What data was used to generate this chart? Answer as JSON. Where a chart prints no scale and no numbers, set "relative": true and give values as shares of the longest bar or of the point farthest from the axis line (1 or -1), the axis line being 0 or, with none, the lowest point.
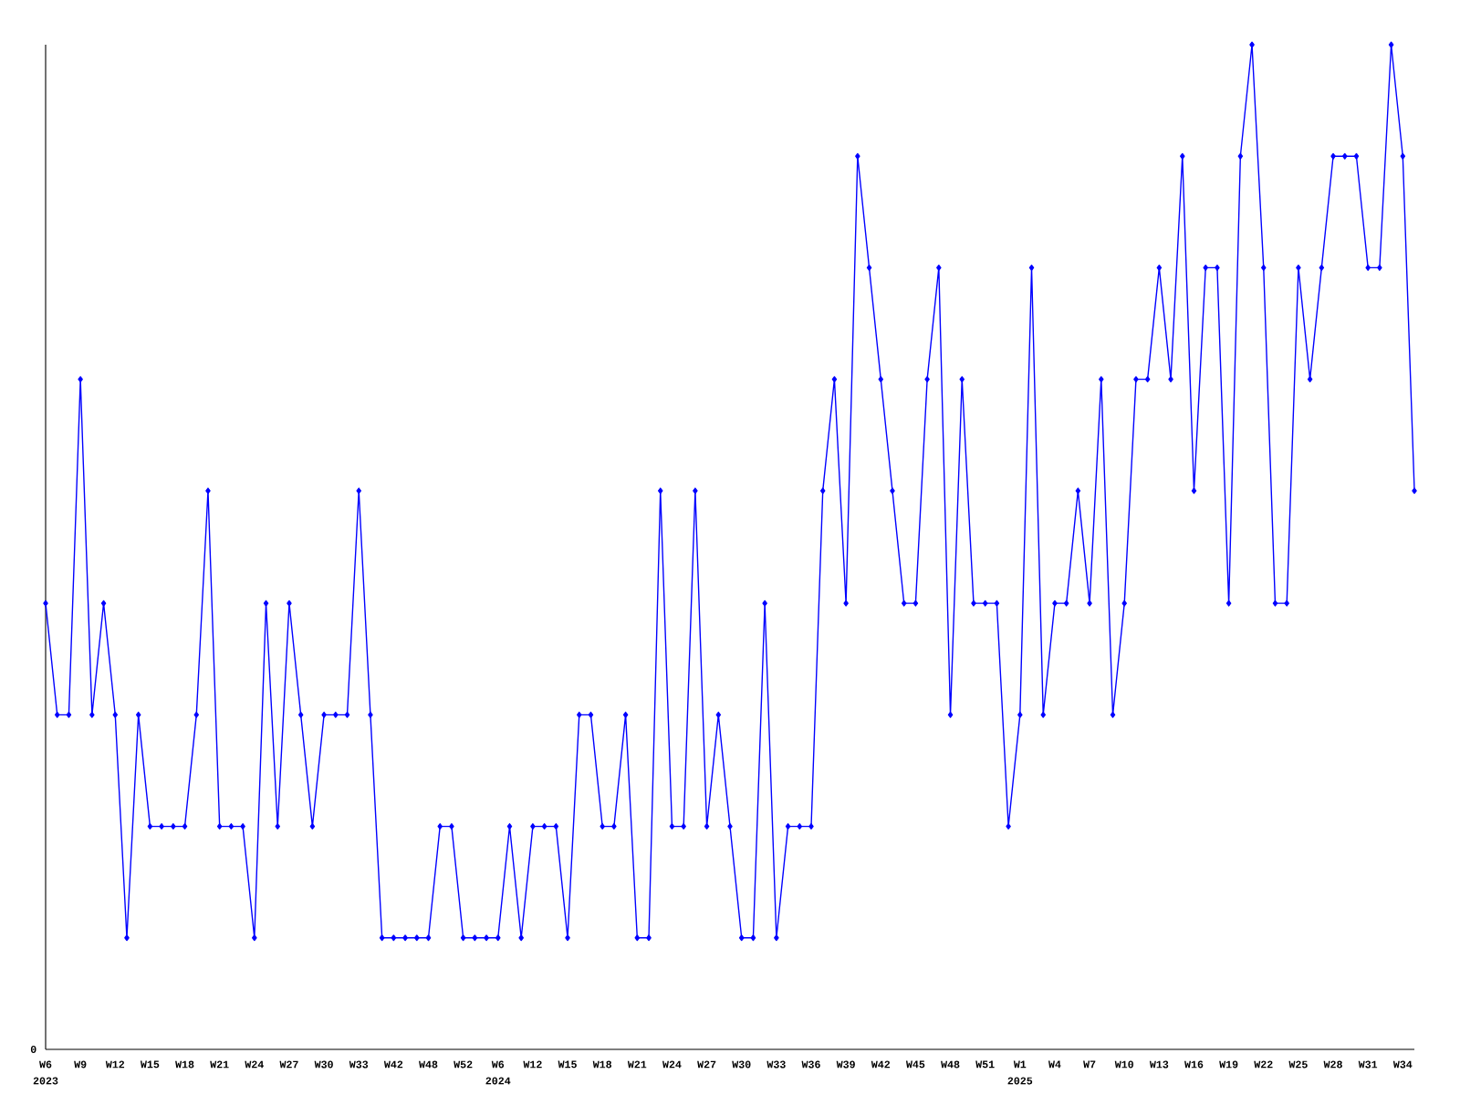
{
  "chart_data": {
    "type": "line",
    "relative": true,
    "color": "#0000ff",
    "marker": "diamond",
    "categories": [
      "W6",
      null,
      null,
      "W9",
      null,
      null,
      "W12",
      null,
      null,
      "W15",
      null,
      null,
      "W18",
      null,
      null,
      "W21",
      null,
      null,
      "W24",
      null,
      null,
      "W27",
      null,
      null,
      "W30",
      null,
      null,
      "W33",
      null,
      null,
      "W42",
      null,
      null,
      "W48",
      null,
      null,
      "W52",
      null,
      null,
      "W6",
      null,
      null,
      "W12",
      null,
      null,
      "W15",
      null,
      null,
      "W18",
      null,
      null,
      "W21",
      null,
      null,
      "W24",
      null,
      null,
      "W27",
      null,
      null,
      "W30",
      null,
      null,
      "W33",
      null,
      null,
      "W36",
      null,
      null,
      "W39",
      null,
      null,
      "W42",
      null,
      null,
      "W45",
      null,
      null,
      "W48",
      null,
      null,
      "W51",
      null,
      null,
      "W1",
      null,
      null,
      "W4",
      null,
      null,
      "W7",
      null,
      null,
      "W10",
      null,
      null,
      "W13",
      null,
      null,
      "W16",
      null,
      null,
      "W19",
      null,
      null,
      "W22",
      null,
      null,
      "W25",
      null,
      null,
      "W28",
      null,
      null,
      "W31",
      null,
      null,
      "W34",
      null
    ],
    "values": [
      0.444,
      0.333,
      0.333,
      0.667,
      0.333,
      0.444,
      0.333,
      0.111,
      0.333,
      0.222,
      0.222,
      0.222,
      0.222,
      0.333,
      0.556,
      0.222,
      0.222,
      0.222,
      0.111,
      0.444,
      0.222,
      0.444,
      0.333,
      0.222,
      0.333,
      0.333,
      0.333,
      0.556,
      0.333,
      0.111,
      0.111,
      0.111,
      0.111,
      0.111,
      0.222,
      0.222,
      0.111,
      0.111,
      0.111,
      0.111,
      0.222,
      0.111,
      0.222,
      0.222,
      0.222,
      0.111,
      0.333,
      0.333,
      0.222,
      0.222,
      0.333,
      0.111,
      0.111,
      0.556,
      0.222,
      0.222,
      0.556,
      0.222,
      0.333,
      0.222,
      0.111,
      0.111,
      0.444,
      0.111,
      0.222,
      0.222,
      0.222,
      0.556,
      0.667,
      0.444,
      0.889,
      0.778,
      0.667,
      0.556,
      0.444,
      0.444,
      0.667,
      0.778,
      0.333,
      0.667,
      0.444,
      0.444,
      0.444,
      0.222,
      0.333,
      0.778,
      0.333,
      0.444,
      0.444,
      0.556,
      0.444,
      0.667,
      0.333,
      0.444,
      0.667,
      0.667,
      0.778,
      0.667,
      0.889,
      0.556,
      0.778,
      0.778,
      0.444,
      0.889,
      1,
      0.778,
      0.444,
      0.444,
      0.778,
      0.667,
      0.778,
      0.889,
      0.889,
      0.889,
      0.778,
      0.778,
      1,
      0.889,
      0.556
    ],
    "annotations": [
      "0",
      "2023",
      "2024",
      "2025"
    ]
  }
}
